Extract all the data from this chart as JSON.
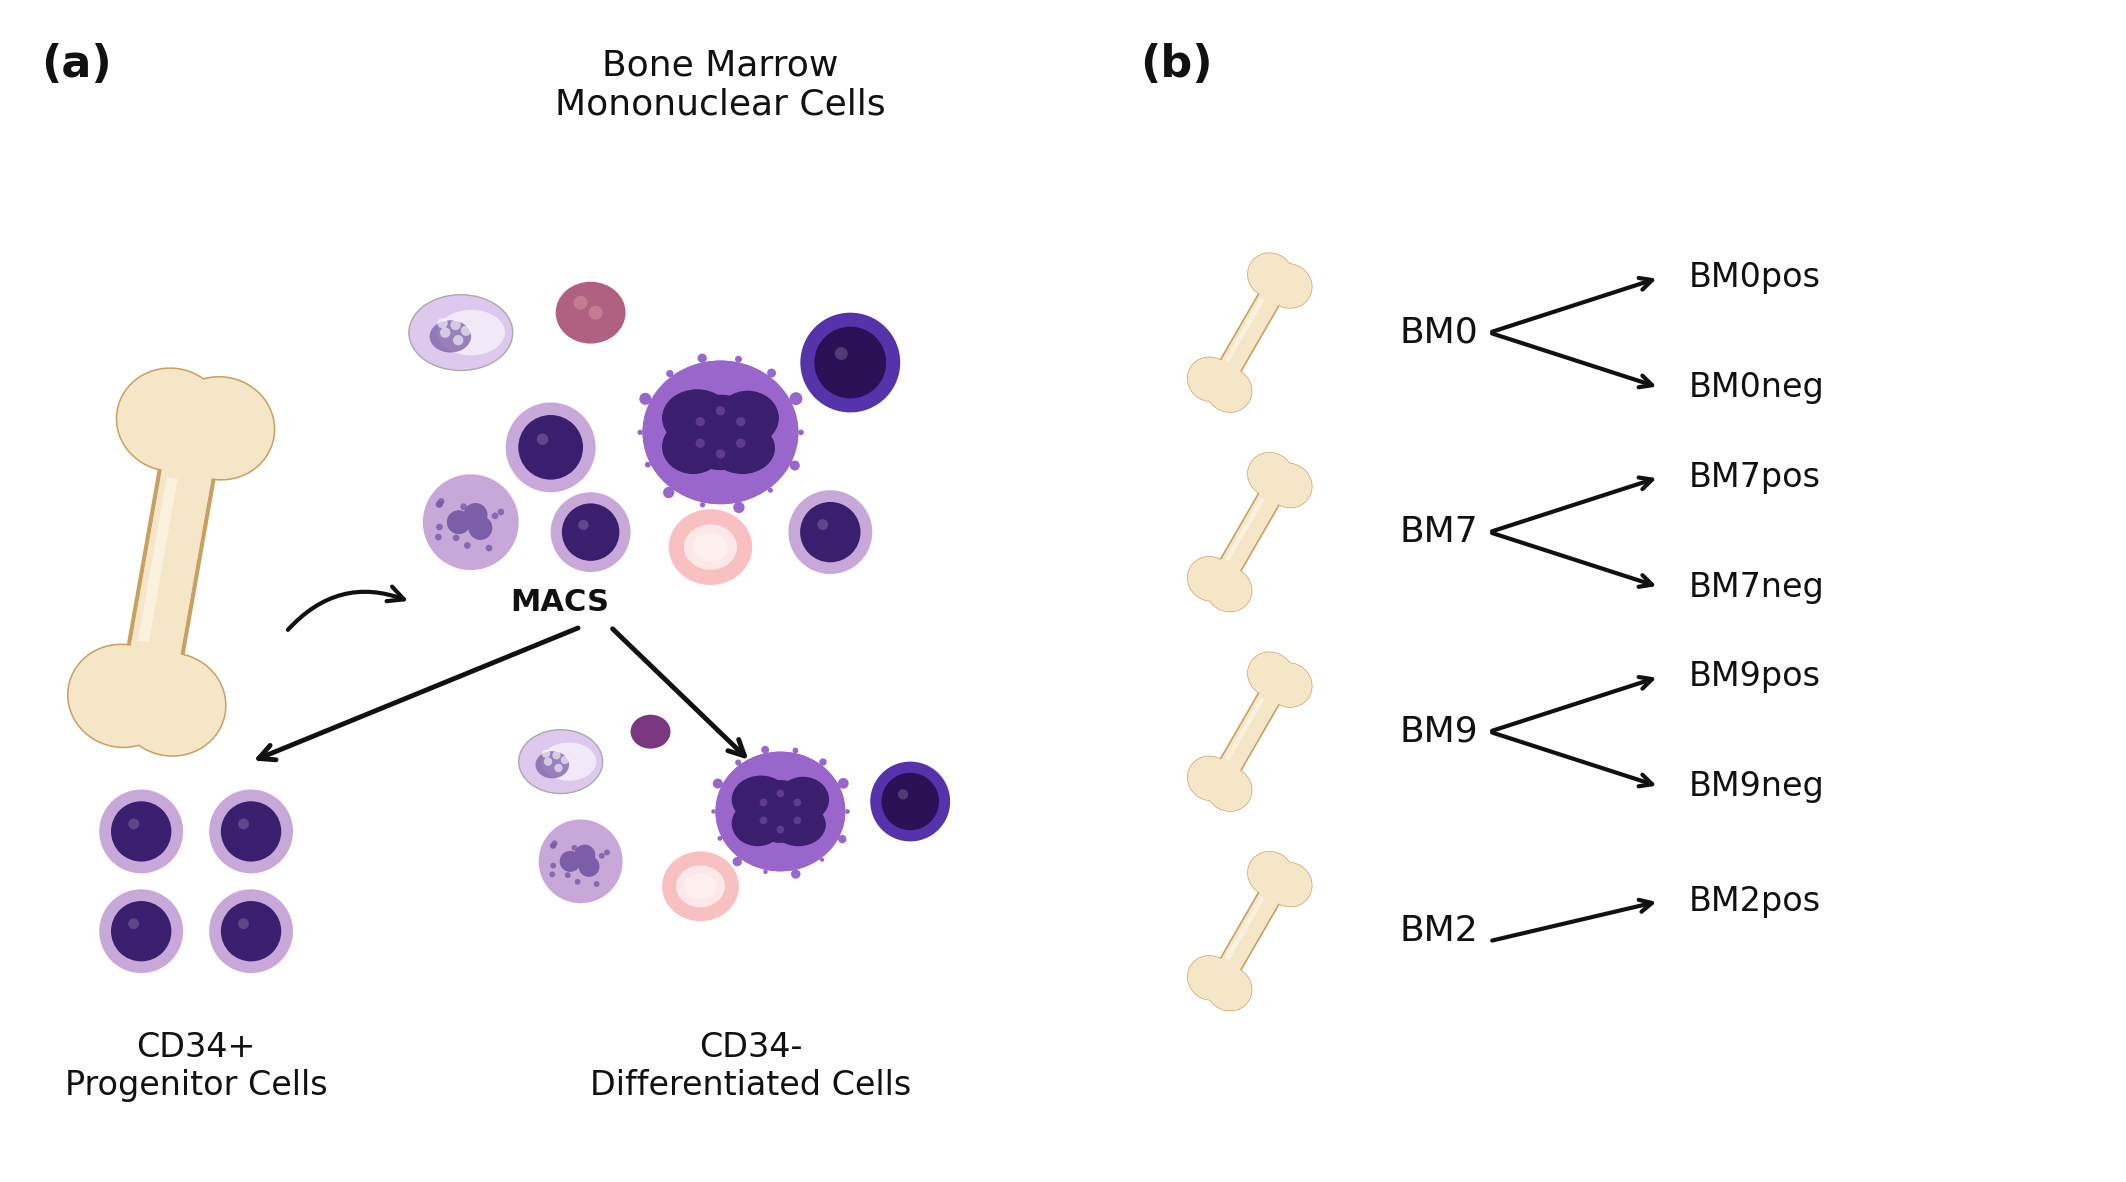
{
  "fig_width": 21.26,
  "fig_height": 11.82,
  "bg_color": "#ffffff",
  "panel_a_label": "(a)",
  "panel_b_label": "(b)",
  "bm_mnc_title": "Bone Marrow\nMononuclear Cells",
  "macs_label": "MACS",
  "cd34pos_label": "CD34+\nProgenitor Cells",
  "cd34neg_label": "CD34-\nDifferentiated Cells",
  "bone_fill_light": "#f5e6c8",
  "bone_fill_mid": "#e8c88a",
  "bone_fill_dark": "#d4a855",
  "bone_shadow": "#c8a060",
  "cell_purple_dark": "#3a1f6e",
  "cell_purple_mid": "#7b5ea7",
  "cell_purple_bright": "#8855cc",
  "cell_lavender": "#c8a8d8",
  "cell_lavender_light": "#ddc8ee",
  "cell_monocyte": "#9966cc",
  "cell_dark_rbc": "#7a3880",
  "cell_pink": "#f08888",
  "cell_pink_light": "#f8c0c0",
  "cell_pink_bg": "#fcdcdc",
  "font_size_panel": 32,
  "font_size_title": 26,
  "font_size_macs": 22,
  "font_size_cd34": 24,
  "font_size_donor": 26,
  "font_size_lib": 24,
  "arrow_color": "#111111",
  "text_color": "#111111",
  "donors": [
    {
      "name": "BM0",
      "libs": [
        "BM0pos",
        "BM0neg"
      ],
      "y": 8.5
    },
    {
      "name": "BM7",
      "libs": [
        "BM7pos",
        "BM7neg"
      ],
      "y": 6.5
    },
    {
      "name": "BM9",
      "libs": [
        "BM9pos",
        "BM9neg"
      ],
      "y": 4.5
    },
    {
      "name": "BM2",
      "libs": [
        "BM2pos"
      ],
      "y": 2.5
    }
  ]
}
